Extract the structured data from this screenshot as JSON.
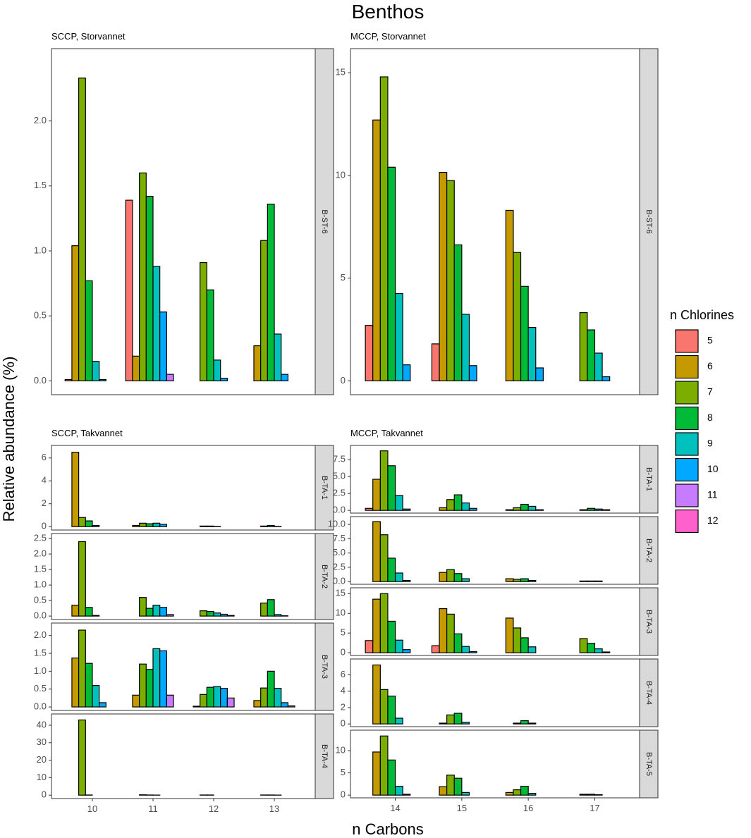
{
  "chart_data": {
    "type": "bar",
    "title": "Benthos",
    "xlabel": "n Carbons",
    "ylabel": "Relative abundance (%)",
    "grid": false,
    "legend_position": "right",
    "legend": {
      "title": "n Chlorines",
      "entries": [
        {
          "label": "5",
          "color": "#F8766D"
        },
        {
          "label": "6",
          "color": "#C49A00"
        },
        {
          "label": "7",
          "color": "#7CAE00"
        },
        {
          "label": "8",
          "color": "#00BA38"
        },
        {
          "label": "9",
          "color": "#00C1BE"
        },
        {
          "label": "10",
          "color": "#00A9FF"
        },
        {
          "label": "11",
          "color": "#C77CFF"
        },
        {
          "label": "12",
          "color": "#FF61CC"
        }
      ]
    },
    "chlorines": [
      5,
      6,
      7,
      8,
      9,
      10,
      11,
      12
    ],
    "panels": [
      {
        "group_title": "SCCP, Storvannet",
        "strip": "B-ST-6",
        "categories": [
          "10",
          "11",
          "12",
          "13"
        ],
        "ylim": [
          0,
          2.45
        ],
        "yticks": [
          {
            "v": 0,
            "label": "0.0"
          },
          {
            "v": 0.5,
            "label": "0.5"
          },
          {
            "v": 1,
            "label": "1.0"
          },
          {
            "v": 1.5,
            "label": "1.5"
          },
          {
            "v": 2,
            "label": "2.0"
          }
        ],
        "values": [
          [
            0.01,
            1.04,
            2.33,
            0.77,
            0.15,
            0.01,
            0,
            0
          ],
          [
            1.39,
            0.19,
            1.6,
            1.42,
            0.88,
            0.53,
            0.05,
            0
          ],
          [
            0,
            0,
            0.91,
            0.7,
            0.16,
            0.02,
            0,
            0
          ],
          [
            0,
            0.27,
            1.08,
            1.36,
            0.36,
            0.05,
            0,
            0
          ]
        ]
      },
      {
        "group_title": "MCCP, Storvannet",
        "strip": "B-ST-6",
        "categories": [
          "14",
          "15",
          "16",
          "17"
        ],
        "ylim": [
          0,
          15.5
        ],
        "yticks": [
          {
            "v": 0,
            "label": "0"
          },
          {
            "v": 5,
            "label": "5"
          },
          {
            "v": 10,
            "label": "10"
          },
          {
            "v": 15,
            "label": "15"
          }
        ],
        "values": [
          [
            2.7,
            12.7,
            14.8,
            10.4,
            4.25,
            0.78,
            0,
            0
          ],
          [
            1.8,
            10.15,
            9.75,
            6.62,
            3.24,
            0.74,
            0,
            0
          ],
          [
            0,
            8.3,
            6.25,
            4.6,
            2.6,
            0.63,
            0,
            0
          ],
          [
            0,
            0,
            3.32,
            2.48,
            1.35,
            0.2,
            0,
            0
          ]
        ]
      },
      {
        "group_title": "SCCP, Takvannet",
        "strip": "B-TA-1",
        "categories": [
          "10",
          "11",
          "12",
          "13"
        ],
        "ylim": [
          0,
          6.8
        ],
        "yticks": [
          {
            "v": 0,
            "label": "0"
          },
          {
            "v": 2,
            "label": "2"
          },
          {
            "v": 4,
            "label": "4"
          },
          {
            "v": 6,
            "label": "6"
          }
        ],
        "values": [
          [
            0,
            6.5,
            0.8,
            0.5,
            0.1,
            0,
            0,
            0
          ],
          [
            0,
            0.1,
            0.3,
            0.25,
            0.3,
            0.2,
            0,
            0
          ],
          [
            0,
            0,
            0.05,
            0.05,
            0.02,
            0,
            0,
            0
          ],
          [
            0,
            0,
            0.05,
            0.1,
            0.02,
            0,
            0,
            0
          ]
        ]
      },
      {
        "group_title": "",
        "strip": "B-TA-2",
        "categories": [
          "10",
          "11",
          "12",
          "13"
        ],
        "ylim": [
          0,
          2.55
        ],
        "yticks": [
          {
            "v": 0,
            "label": "0.0"
          },
          {
            "v": 0.5,
            "label": "0.5"
          },
          {
            "v": 1,
            "label": "1.0"
          },
          {
            "v": 1.5,
            "label": "1.5"
          },
          {
            "v": 2,
            "label": "2.0"
          },
          {
            "v": 2.5,
            "label": "2.5"
          }
        ],
        "values": [
          [
            0,
            0.35,
            2.4,
            0.28,
            0.02,
            0,
            0,
            0
          ],
          [
            0,
            0,
            0.6,
            0.25,
            0.35,
            0.28,
            0.05,
            0
          ],
          [
            0,
            0,
            0.17,
            0.15,
            0.1,
            0.06,
            0.02,
            0
          ],
          [
            0,
            0,
            0.42,
            0.53,
            0.05,
            0.01,
            0,
            0
          ]
        ]
      },
      {
        "group_title": "",
        "strip": "B-TA-3",
        "categories": [
          "10",
          "11",
          "12",
          "13"
        ],
        "ylim": [
          0,
          2.25
        ],
        "yticks": [
          {
            "v": 0,
            "label": "0.0"
          },
          {
            "v": 0.5,
            "label": "0.5"
          },
          {
            "v": 1,
            "label": "1.0"
          },
          {
            "v": 1.5,
            "label": "1.5"
          },
          {
            "v": 2,
            "label": "2.0"
          }
        ],
        "values": [
          [
            0,
            1.37,
            2.15,
            1.22,
            0.6,
            0.12,
            0,
            0
          ],
          [
            0,
            0.33,
            1.2,
            1.05,
            1.63,
            1.57,
            0.33,
            0
          ],
          [
            0,
            0.02,
            0.35,
            0.55,
            0.57,
            0.52,
            0.25,
            0
          ],
          [
            0,
            0.18,
            0.53,
            1,
            0.52,
            0.12,
            0.03,
            0
          ]
        ]
      },
      {
        "group_title": "",
        "strip": "B-TA-4",
        "categories": [
          "10",
          "11",
          "12",
          "13"
        ],
        "ylim": [
          0,
          44.5
        ],
        "yticks": [
          {
            "v": 0,
            "label": "0"
          },
          {
            "v": 10,
            "label": "10"
          },
          {
            "v": 20,
            "label": "20"
          },
          {
            "v": 30,
            "label": "30"
          },
          {
            "v": 40,
            "label": "40"
          }
        ],
        "values": [
          [
            0,
            0,
            43,
            0.1,
            0,
            0,
            0,
            0
          ],
          [
            0,
            0,
            0.2,
            0.1,
            0.05,
            0,
            0,
            0
          ],
          [
            0,
            0,
            0.1,
            0.1,
            0,
            0,
            0,
            0
          ],
          [
            0,
            0,
            0.1,
            0.1,
            0.05,
            0,
            0,
            0
          ]
        ]
      },
      {
        "group_title": "MCCP, Takvannet",
        "strip": "B-TA-1",
        "categories": [
          "14",
          "15",
          "16",
          "17"
        ],
        "ylim": [
          0,
          9.2
        ],
        "yticks": [
          {
            "v": 0,
            "label": "0.0"
          },
          {
            "v": 2.5,
            "label": "2.5"
          },
          {
            "v": 5,
            "label": "5.0"
          },
          {
            "v": 7.5,
            "label": "7.5"
          }
        ],
        "values": [
          [
            0.3,
            4.6,
            8.8,
            6.6,
            2.2,
            0.2,
            0,
            0
          ],
          [
            0,
            0.4,
            1.6,
            2.3,
            1.1,
            0.3,
            0,
            0
          ],
          [
            0,
            0.1,
            0.4,
            0.9,
            0.6,
            0.1,
            0,
            0
          ],
          [
            0,
            0,
            0.1,
            0.3,
            0.2,
            0.1,
            0,
            0
          ]
        ]
      },
      {
        "group_title": "",
        "strip": "B-TA-2",
        "categories": [
          "14",
          "15",
          "16",
          "17"
        ],
        "ylim": [
          0,
          10.9
        ],
        "yticks": [
          {
            "v": 0,
            "label": "0.0"
          },
          {
            "v": 2.5,
            "label": "2.5"
          },
          {
            "v": 5,
            "label": "5.0"
          },
          {
            "v": 7.5,
            "label": "7.5"
          },
          {
            "v": 10,
            "label": "10.0"
          }
        ],
        "values": [
          [
            0,
            10.5,
            8.2,
            4.1,
            1.5,
            0.2,
            0,
            0
          ],
          [
            0,
            1.6,
            2.1,
            1.4,
            0.5,
            0,
            0,
            0
          ],
          [
            0,
            0.5,
            0.4,
            0.5,
            0.2,
            0,
            0,
            0
          ],
          [
            0,
            0,
            0.1,
            0.1,
            0.1,
            0,
            0,
            0
          ]
        ]
      },
      {
        "group_title": "",
        "strip": "B-TA-3",
        "categories": [
          "14",
          "15",
          "16",
          "17"
        ],
        "ylim": [
          0,
          15.8
        ],
        "yticks": [
          {
            "v": 0,
            "label": "0"
          },
          {
            "v": 5,
            "label": "5"
          },
          {
            "v": 10,
            "label": "10"
          },
          {
            "v": 15,
            "label": "15"
          }
        ],
        "values": [
          [
            3.1,
            13.6,
            15,
            8,
            3.2,
            0.8,
            0,
            0
          ],
          [
            1.8,
            11.2,
            9.8,
            4.8,
            1.6,
            0.3,
            0,
            0
          ],
          [
            0,
            8.8,
            6.3,
            3.8,
            1.5,
            0,
            0,
            0
          ],
          [
            0,
            0,
            3.6,
            2.4,
            1,
            0.2,
            0,
            0
          ]
        ]
      },
      {
        "group_title": "",
        "strip": "B-TA-4",
        "categories": [
          "14",
          "15",
          "16",
          "17"
        ],
        "ylim": [
          0,
          7.6
        ],
        "yticks": [
          {
            "v": 0,
            "label": "0"
          },
          {
            "v": 2,
            "label": "2"
          },
          {
            "v": 4,
            "label": "4"
          },
          {
            "v": 6,
            "label": "6"
          }
        ],
        "values": [
          [
            0,
            7.2,
            4.2,
            3.4,
            0.7,
            0,
            0,
            0
          ],
          [
            0,
            0.1,
            1.1,
            1.3,
            0.2,
            0,
            0,
            0
          ],
          [
            0,
            0,
            0.1,
            0.4,
            0.1,
            0,
            0,
            0
          ],
          [
            0,
            0,
            0,
            0,
            0,
            0,
            0,
            0
          ]
        ]
      },
      {
        "group_title": "",
        "strip": "B-TA-5",
        "categories": [
          "14",
          "15",
          "16",
          "17"
        ],
        "ylim": [
          0,
          14
        ],
        "yticks": [
          {
            "v": 0,
            "label": "0"
          },
          {
            "v": 5,
            "label": "5"
          },
          {
            "v": 10,
            "label": "10"
          }
        ],
        "values": [
          [
            0,
            9.7,
            13.3,
            7.9,
            2,
            0.2,
            0,
            0
          ],
          [
            0,
            1.9,
            4.5,
            3.8,
            0.6,
            0,
            0,
            0
          ],
          [
            0,
            0.6,
            1.2,
            2,
            0.4,
            0,
            0,
            0
          ],
          [
            0,
            0,
            0.2,
            0.2,
            0.1,
            0,
            0,
            0
          ]
        ]
      }
    ]
  }
}
